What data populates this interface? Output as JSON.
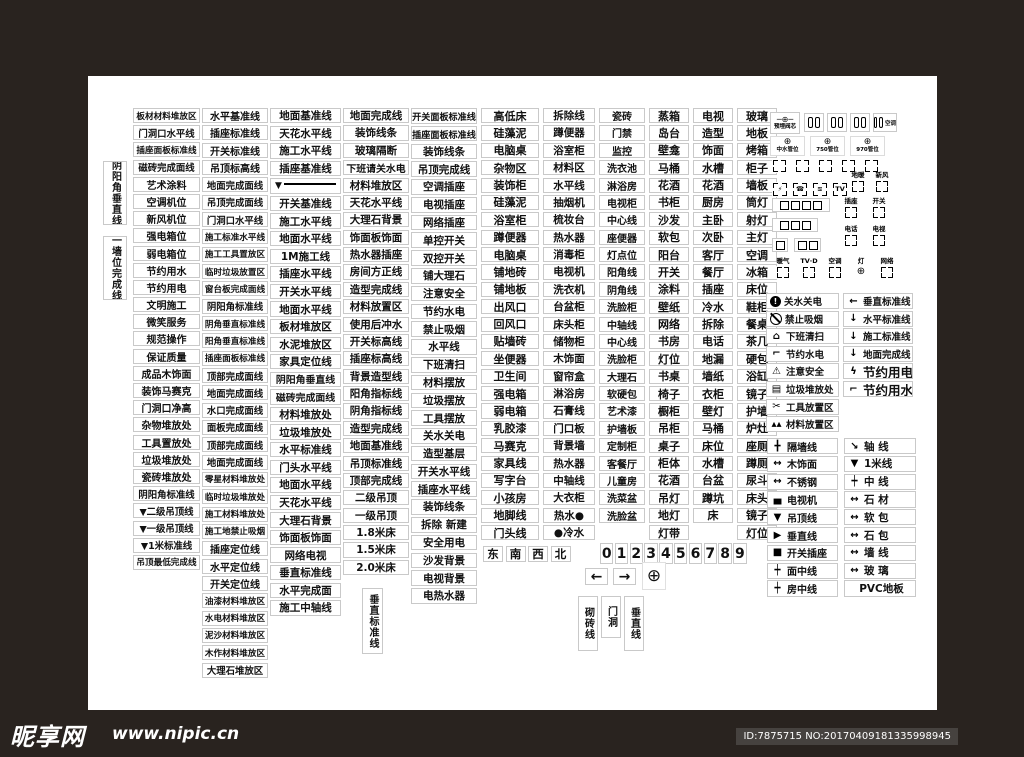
{
  "colors": {
    "page_bg": "#29231f",
    "sheet_bg": "#ffffff",
    "box_border": "#c9c9c9",
    "text": "#111111"
  },
  "watermark": {
    "brand": "昵享网",
    "url": "www.nipic.cn",
    "id_text": "ID:7875715 NO:20170409181335998945"
  },
  "sheet": {
    "left_vertical_labels": [
      "阴阳角垂直线",
      "一墙位完成线"
    ],
    "col4_vertical_label": "垂直标准线",
    "bottom_vertical_labels": [
      "砌砖线",
      "门洞",
      "垂直线"
    ],
    "compass": [
      "东",
      "南",
      "西",
      "北"
    ],
    "digits": [
      "0",
      "1",
      "2",
      "3",
      "4",
      "5",
      "6",
      "7",
      "8",
      "9"
    ],
    "arrows": [
      "←",
      "→"
    ],
    "crosshair": "⊕",
    "columns": [
      {
        "name": "col-1",
        "items": [
          "板材材料堆放区",
          "门洞口水平线",
          "插座面板标准线",
          "磁砖完成面线",
          "艺术涂料",
          "空调机位",
          "新风机位",
          "强电箱位",
          "弱电箱位",
          "节约用水",
          "节约用电",
          "文明施工",
          "微笑服务",
          "规范操作",
          "保证质量",
          "成品木饰面",
          "装饰马赛克",
          "门洞口净高",
          "杂物堆放处",
          "工具置放处",
          "垃圾堆放处",
          "瓷砖堆放处",
          "阴阳角标准线",
          "▼二级吊顶线",
          "▼一级吊顶线",
          "▼1米标准线",
          "吊顶最低完成线"
        ]
      },
      {
        "name": "col-2",
        "items": [
          "水平基准线",
          "插座标准线",
          "开关标准线",
          "吊顶标高线",
          "地面完成面线",
          "吊顶完成面线",
          "门洞口水平线",
          "施工标准水平线",
          "施工工具置放区",
          "临时垃圾放置区",
          "窗台板完成面线",
          "阴阳角标准线",
          "阴角垂直标准线",
          "阳角垂直标准线",
          "插座面板标准线",
          "顶部完成面线",
          "地面完成面线",
          "水口完成面线",
          "面板完成面线",
          "顶部完成面线",
          "地面完成面线",
          "零星材料堆放处",
          "临时垃圾堆放处",
          "施工材料堆放处",
          "施工地禁止吸烟",
          "插座定位线",
          "水平定位线",
          "开关定位线",
          "油漆材料堆放区",
          "水电材料堆放区",
          "泥沙材料堆放区",
          "木作材料堆放区",
          "大理石堆放区"
        ]
      },
      {
        "name": "col-3",
        "items": [
          "地面基准线",
          "天花水平线",
          "施工水平线",
          "插座基准线",
          "▼——",
          "开关基准线",
          "施工水平线",
          "地面水平线",
          "1M施工线",
          "插座水平线",
          "开关水平线",
          "地面水平线",
          "板材堆放区",
          "水泥堆放区",
          "家具定位线",
          "阴阳角垂直线",
          "磁砖完成面线",
          "材料堆放处",
          "垃圾堆放处",
          "水平标准线",
          "门头水平线",
          "地面水平线",
          "天花水平线",
          "大理石背景",
          "饰面板饰面",
          "网络电视",
          "垂直标准线",
          "水平完成面",
          "施工中轴线"
        ]
      },
      {
        "name": "col-4",
        "items": [
          "地面完成线",
          "装饰线条",
          "玻璃隔断",
          "下班请关水电",
          "材料堆放区",
          "天花水平线",
          "大理石背景",
          "饰面板饰面",
          "热水器插座",
          "房间方正线",
          "造型完成线",
          "材料放置区",
          "使用后冲水",
          "开关标高线",
          "插座标高线",
          "背景造型线",
          "阳角指标线",
          "阴角指标线",
          "造型完成线",
          "地面基准线",
          "吊顶标准线",
          "顶部完成线",
          "二级吊顶",
          "一级吊顶",
          "1.8米床",
          "1.5米床",
          "2.0米床"
        ]
      },
      {
        "name": "col-5",
        "items": [
          "开关面板标准线",
          "插座面板标准线",
          "装饰线条",
          "吊顶完成线",
          "空调插座",
          "电视插座",
          "网络插座",
          "单控开关",
          "双控开关",
          "铺大理石",
          "注意安全",
          "节约水电",
          "禁止吸烟",
          "水平线",
          "下班清扫",
          "材料摆放",
          "垃圾摆放",
          "工具摆放",
          "关水关电",
          "造型基层",
          "开关水平线",
          "插座水平线",
          "装饰线条",
          "拆除 新建",
          "安全用电",
          "沙发背景",
          "电视背景",
          "电热水器"
        ]
      },
      {
        "name": "col-6",
        "items": [
          "高低床",
          "硅藻泥",
          "电脑桌",
          "杂物区",
          "装饰柜",
          "硅藻泥",
          "浴室柜",
          "蹲便器",
          "电脑桌",
          "铺地砖",
          "铺地板",
          "出风口",
          "回风口",
          "贴墙砖",
          "坐便器",
          "卫生间",
          "强电箱",
          "弱电箱",
          "乳胶漆",
          "马赛克",
          "家具线",
          "写字台",
          "小孩房",
          "地脚线",
          "门头线"
        ]
      },
      {
        "name": "col-7",
        "items": [
          "拆除线",
          "蹲便器",
          "浴室柜",
          "材料区",
          "水平线",
          "抽烟机",
          "梳妆台",
          "热水器",
          "消毒柜",
          "电视机",
          "洗衣机",
          "台盆柜",
          "床头柜",
          "储物柜",
          "木饰面",
          "窗帘盒",
          "淋浴房",
          "石膏线",
          "门口板",
          "背景墙",
          "热水器",
          "中轴线",
          "大衣柜",
          "热水●",
          "●冷水"
        ]
      },
      {
        "name": "col-8",
        "items": [
          "瓷砖",
          "门禁",
          "监控",
          "洗衣池",
          "淋浴房",
          "电视柜",
          "中心线",
          "座便器",
          "灯点位",
          "阳角线",
          "阴角线",
          "洗脸柜",
          "中轴线",
          "中心线",
          "洗脸柜",
          "大理石",
          "软硬包",
          "艺术漆",
          "护墙板",
          "定制柜",
          "客餐厅",
          "儿童房",
          "洗菜盆",
          "洗脸盆"
        ]
      },
      {
        "name": "col-9",
        "items": [
          "蒸箱",
          "岛台",
          "壁龛",
          "马桶",
          "花酒",
          "书柜",
          "沙发",
          "软包",
          "阳台",
          "开关",
          "涂料",
          "壁纸",
          "网络",
          "书房",
          "灯位",
          "书桌",
          "椅子",
          "橱柜",
          "吊柜",
          "桌子",
          "柜体",
          "花酒",
          "吊灯",
          "地灯",
          "灯带"
        ]
      },
      {
        "name": "col-10",
        "items": [
          "电视",
          "造型",
          "饰面",
          "水槽",
          "花酒",
          "厨房",
          "主卧",
          "次卧",
          "客厅",
          "餐厅",
          "插座",
          "冷水",
          "拆除",
          "电话",
          "地漏",
          "墙纸",
          "衣柜",
          "壁灯",
          "马桶",
          "床位",
          "水槽",
          "台盆",
          "蹲坑",
          "床"
        ]
      },
      {
        "name": "col-11",
        "items": [
          "玻璃",
          "地板",
          "烤箱",
          "柜子",
          "墙板",
          "筒灯",
          "射灯",
          "主灯",
          "空调",
          "冰箱",
          "床位",
          "鞋柜",
          "餐桌",
          "茶几",
          "硬包",
          "浴缸",
          "镜子",
          "护墙",
          "炉灶",
          "座厕",
          "蹲厕",
          "尿斗",
          "床头",
          "镜子",
          "灯位"
        ]
      }
    ],
    "icon_panel": {
      "valve_label": "预埋阀芯",
      "ac_label": "空调",
      "pipe_labels": [
        "中水管位",
        "750管位",
        "970管位"
      ],
      "device_glyphs": [
        "⚡",
        "☎",
        "≋",
        "TV"
      ],
      "floor_labels": [
        "地暖",
        "新风"
      ],
      "switch_labels": [
        "插座",
        "开关"
      ],
      "comm_labels": [
        "电话",
        "电视"
      ],
      "lamp_glyph": "⊕",
      "bottom_labels": [
        "暖气",
        "TV·D",
        "空调",
        "灯",
        "网络"
      ]
    },
    "legend1": {
      "left": [
        {
          "icon": "circle-exclaim",
          "label": "关水关电"
        },
        {
          "icon": "no-smoking",
          "label": "禁止吸烟"
        },
        {
          "icon": "⌂",
          "label": "下班清扫"
        },
        {
          "icon": "⌐",
          "label": "节约水电"
        },
        {
          "icon": "⚠",
          "label": "注意安全"
        },
        {
          "icon": "▤",
          "label": "垃圾堆放处"
        },
        {
          "icon": "✂",
          "label": "工具放置区"
        },
        {
          "icon": "▴▴",
          "label": "材料放置区"
        }
      ],
      "right": [
        {
          "icon": "←",
          "label": "垂直标准线"
        },
        {
          "icon": "↓",
          "label": "水平标准线"
        },
        {
          "icon": "↓",
          "label": "施工标准线"
        },
        {
          "icon": "↓",
          "label": "地面完成线"
        },
        {
          "icon": "ϟ",
          "label": "节约用电",
          "big": true
        },
        {
          "icon": "⌐",
          "label": "节约用水",
          "big": true
        }
      ]
    },
    "legend2": {
      "left": [
        {
          "icon": "╋",
          "label": "隔墙线"
        },
        {
          "icon": "↔",
          "label": "木饰面"
        },
        {
          "icon": "↔",
          "label": "不锈钢"
        },
        {
          "icon": "▄",
          "label": "电视机"
        },
        {
          "icon": "▼",
          "label": "吊顶线"
        },
        {
          "icon": "▶",
          "label": "垂直线"
        },
        {
          "icon": "■",
          "label": "开关插座"
        },
        {
          "icon": "┿",
          "label": "面中线"
        },
        {
          "icon": "┿",
          "label": "房中线"
        }
      ],
      "right": [
        {
          "icon": "↘",
          "label": "轴 线"
        },
        {
          "icon": "▼",
          "label": "1米线"
        },
        {
          "icon": "┿",
          "label": "中 线"
        },
        {
          "icon": "↔",
          "label": "石 材"
        },
        {
          "icon": "↔",
          "label": "软 包"
        },
        {
          "icon": "↔",
          "label": "石 包"
        },
        {
          "icon": "↔",
          "label": "墙 线"
        },
        {
          "icon": "↔",
          "label": "玻 璃"
        },
        {
          "icon": "",
          "label": "PVC地板"
        }
      ]
    }
  }
}
